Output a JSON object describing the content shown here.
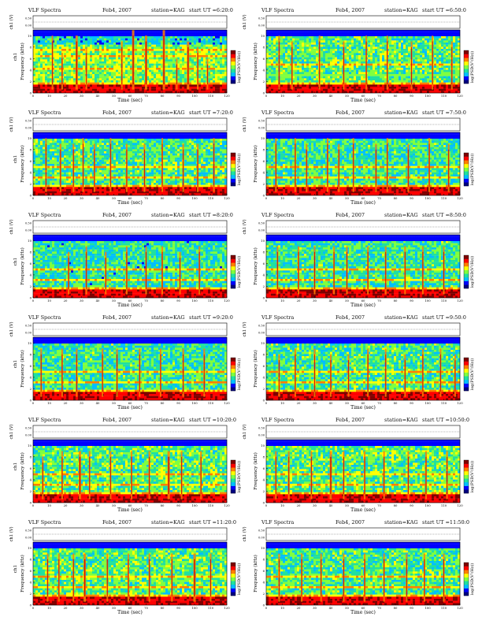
{
  "chart_data": {
    "type": "heatmap",
    "colormap": [
      "#00007f",
      "#0000ff",
      "#00bfff",
      "#20e0a0",
      "#7fff3f",
      "#ffff00",
      "#ff7f00",
      "#ff0000",
      "#7f0000"
    ],
    "x_ticks": [
      "0",
      "10",
      "20",
      "30",
      "40",
      "50",
      "60",
      "70",
      "80",
      "90",
      "100",
      "110",
      "120"
    ],
    "freq_ticks": [
      "0",
      "2",
      "4",
      "6",
      "8",
      "10"
    ],
    "volt_ticks": [
      "0.00",
      "0.50"
    ],
    "xlabel": "Time (sec)",
    "ylabel_freq": "Frequency (kHz)",
    "ylabel_top": "ch1",
    "ylabel_volt": "ch1 (V)",
    "colorbar_label": "log(PSD(V²/Hz))",
    "xlim": [
      0,
      120
    ],
    "ylim_freq": [
      0,
      11
    ],
    "panels": [
      {
        "title": "VLF Spectra",
        "date": "Feb4, 2007",
        "station": "station=KAG",
        "start": "start UT =6:20:0",
        "show_ylabel_top": true,
        "bright_lines_khz": [
          7.5,
          6.4,
          4.2
        ],
        "dark_band_khz": [
          8.5,
          10
        ],
        "noise_level": 0.5,
        "bursts_sec": [
          [
            12,
            10,
            2
          ],
          [
            18,
            7,
            2
          ],
          [
            27,
            10,
            3
          ],
          [
            33,
            8,
            2
          ],
          [
            55,
            9,
            2
          ],
          [
            62,
            11,
            3
          ],
          [
            70,
            10,
            3
          ],
          [
            81,
            11,
            3
          ],
          [
            89,
            6,
            2
          ],
          [
            96,
            9,
            3
          ],
          [
            102,
            8,
            2
          ],
          [
            108,
            6,
            2
          ]
        ]
      },
      {
        "title": "VLF Spectra",
        "date": "Feb4, 2007",
        "station": "station=KAG",
        "start": "start UT =6:50:0",
        "show_ylabel_top": false,
        "bright_lines_khz": [
          3.0,
          5.0
        ],
        "dark_band_khz": [
          2.8,
          3.2
        ],
        "noise_level": 0.45,
        "bursts_sec": [
          [
            8,
            10,
            2
          ],
          [
            16,
            9,
            2
          ],
          [
            33,
            10,
            2
          ],
          [
            48,
            9,
            2
          ],
          [
            62,
            10,
            2
          ],
          [
            75,
            10,
            2
          ],
          [
            90,
            9,
            2
          ],
          [
            103,
            10,
            2
          ],
          [
            115,
            9,
            2
          ]
        ]
      },
      {
        "title": "VLF Spectra",
        "date": "Feb4, 2007",
        "station": "station=KAG",
        "start": "start UT =7:20:0",
        "show_ylabel_top": true,
        "bright_lines_khz": [
          3.0,
          5.0
        ],
        "dark_band_khz": [],
        "noise_level": 0.42,
        "bursts_sec": [
          [
            8,
            10,
            2
          ],
          [
            17,
            9,
            2
          ],
          [
            25,
            9,
            2
          ],
          [
            31,
            10,
            2
          ],
          [
            38,
            9,
            2
          ],
          [
            48,
            10,
            2
          ],
          [
            58,
            9,
            2
          ],
          [
            69,
            9,
            2
          ],
          [
            80,
            10,
            2
          ],
          [
            93,
            9,
            2
          ],
          [
            102,
            9,
            2
          ],
          [
            112,
            10,
            2
          ]
        ]
      },
      {
        "title": "VLF Spectra",
        "date": "Feb4, 2007",
        "station": "station=KAG",
        "start": "start UT =7:50:0",
        "show_ylabel_top": false,
        "bright_lines_khz": [
          3.0,
          5.0
        ],
        "dark_band_khz": [],
        "noise_level": 0.4,
        "bursts_sec": [
          [
            6,
            10,
            2
          ],
          [
            18,
            10,
            2
          ],
          [
            25,
            9,
            2
          ],
          [
            38,
            10,
            2
          ],
          [
            45,
            9,
            2
          ],
          [
            54,
            10,
            2
          ],
          [
            68,
            9,
            2
          ],
          [
            75,
            10,
            2
          ],
          [
            88,
            9,
            2
          ],
          [
            101,
            10,
            2
          ],
          [
            113,
            9,
            2
          ]
        ]
      },
      {
        "title": "VLF Spectra",
        "date": "Feb4, 2007",
        "station": "station=KAG",
        "start": "start UT =8:20:0",
        "show_ylabel_top": true,
        "bright_lines_khz": [
          3.0,
          5.0
        ],
        "dark_band_khz": [],
        "noise_level": 0.38,
        "bursts_sec": [
          [
            22,
            8,
            2
          ],
          [
            33,
            9,
            2
          ],
          [
            45,
            8,
            2
          ],
          [
            58,
            9,
            2
          ],
          [
            70,
            9,
            2
          ],
          [
            80,
            9,
            2
          ],
          [
            91,
            8,
            2
          ],
          [
            103,
            9,
            2
          ]
        ]
      },
      {
        "title": "VLF Spectra",
        "date": "Feb4, 2007",
        "station": "station=KAG",
        "start": "start UT =8:50:0",
        "show_ylabel_top": false,
        "bright_lines_khz": [
          3.0,
          5.0
        ],
        "dark_band_khz": [],
        "noise_level": 0.4,
        "bursts_sec": [
          [
            7,
            9,
            2
          ],
          [
            20,
            9,
            2
          ],
          [
            30,
            9,
            2
          ],
          [
            42,
            9,
            2
          ],
          [
            50,
            9,
            2
          ],
          [
            63,
            9,
            2
          ],
          [
            74,
            9,
            2
          ],
          [
            86,
            9,
            2
          ],
          [
            97,
            9,
            2
          ],
          [
            110,
            9,
            2
          ]
        ]
      },
      {
        "title": "VLF Spectra",
        "date": "Feb4, 2007",
        "station": "station=KAG",
        "start": "start UT =9:20:0",
        "show_ylabel_top": true,
        "bright_lines_khz": [
          3.0,
          5.0
        ],
        "dark_band_khz": [],
        "noise_level": 0.4,
        "bursts_sec": [
          [
            5,
            9,
            2
          ],
          [
            18,
            9,
            2
          ],
          [
            27,
            9,
            2
          ],
          [
            43,
            9,
            2
          ],
          [
            52,
            9,
            2
          ],
          [
            66,
            9,
            2
          ],
          [
            79,
            9,
            2
          ],
          [
            93,
            9,
            2
          ],
          [
            106,
            9,
            2
          ]
        ]
      },
      {
        "title": "VLF Spectra",
        "date": "Feb4, 2007",
        "station": "station=KAG",
        "start": "start UT =9:50:0",
        "show_ylabel_top": false,
        "bright_lines_khz": [
          3.0,
          5.0
        ],
        "dark_band_khz": [],
        "noise_level": 0.42,
        "bursts_sec": [
          [
            8,
            8,
            2
          ],
          [
            18,
            9,
            2
          ],
          [
            30,
            9,
            2
          ],
          [
            40,
            8,
            2
          ],
          [
            51,
            8,
            2
          ],
          [
            63,
            9,
            2
          ],
          [
            74,
            9,
            2
          ],
          [
            86,
            8,
            2
          ],
          [
            97,
            9,
            2
          ],
          [
            108,
            9,
            2
          ],
          [
            117,
            8,
            2
          ]
        ]
      },
      {
        "title": "VLF Spectra",
        "date": "Feb4, 2007",
        "station": "station=KAG",
        "start": "start UT =10:20:0",
        "show_ylabel_top": true,
        "bright_lines_khz": [
          3.0,
          5.0
        ],
        "dark_band_khz": [],
        "noise_level": 0.45,
        "bursts_sec": [
          [
            6,
            8,
            2
          ],
          [
            18,
            9,
            2
          ],
          [
            29,
            9,
            3
          ],
          [
            35,
            9,
            2
          ],
          [
            48,
            9,
            2
          ],
          [
            61,
            9,
            2
          ],
          [
            72,
            9,
            2
          ],
          [
            84,
            9,
            3
          ],
          [
            92,
            9,
            2
          ],
          [
            104,
            9,
            2
          ]
        ]
      },
      {
        "title": "VLF Spectra",
        "date": "Feb4, 2007",
        "station": "station=KAG",
        "start": "start UT =10:50:0",
        "show_ylabel_top": false,
        "bright_lines_khz": [
          3.0,
          5.0
        ],
        "dark_band_khz": [],
        "noise_level": 0.45,
        "bursts_sec": [
          [
            6,
            9,
            2
          ],
          [
            14,
            9,
            2
          ],
          [
            28,
            9,
            2
          ],
          [
            40,
            9,
            3
          ],
          [
            48,
            9,
            2
          ],
          [
            61,
            9,
            2
          ],
          [
            73,
            9,
            2
          ],
          [
            88,
            9,
            2
          ],
          [
            99,
            9,
            2
          ],
          [
            112,
            9,
            2
          ]
        ]
      },
      {
        "title": "VLF Spectra",
        "date": "Feb4, 2007",
        "station": "station=KAG",
        "start": "start UT =11:20:0",
        "show_ylabel_top": true,
        "bright_lines_khz": [
          3.0,
          5.0
        ],
        "dark_band_khz": [],
        "noise_level": 0.45,
        "bursts_sec": [
          [
            9,
            9,
            2
          ],
          [
            16,
            9,
            2
          ],
          [
            25,
            9,
            2
          ],
          [
            32,
            9,
            3
          ],
          [
            46,
            9,
            2
          ],
          [
            59,
            9,
            2
          ],
          [
            72,
            9,
            2
          ],
          [
            86,
            9,
            2
          ],
          [
            100,
            9,
            3
          ],
          [
            110,
            9,
            2
          ]
        ]
      },
      {
        "title": "VLF Spectra",
        "date": "Feb4, 2007",
        "station": "station=KAG",
        "start": "start UT =11:50:0",
        "show_ylabel_top": false,
        "bright_lines_khz": [
          3.0,
          5.0
        ],
        "dark_band_khz": [],
        "noise_level": 0.42,
        "bursts_sec": [
          [
            8,
            9,
            2
          ],
          [
            22,
            9,
            2
          ],
          [
            34,
            9,
            2
          ],
          [
            48,
            9,
            2
          ],
          [
            61,
            9,
            2
          ],
          [
            73,
            9,
            2
          ],
          [
            87,
            9,
            2
          ],
          [
            98,
            9,
            2
          ],
          [
            110,
            9,
            2
          ]
        ]
      }
    ]
  }
}
